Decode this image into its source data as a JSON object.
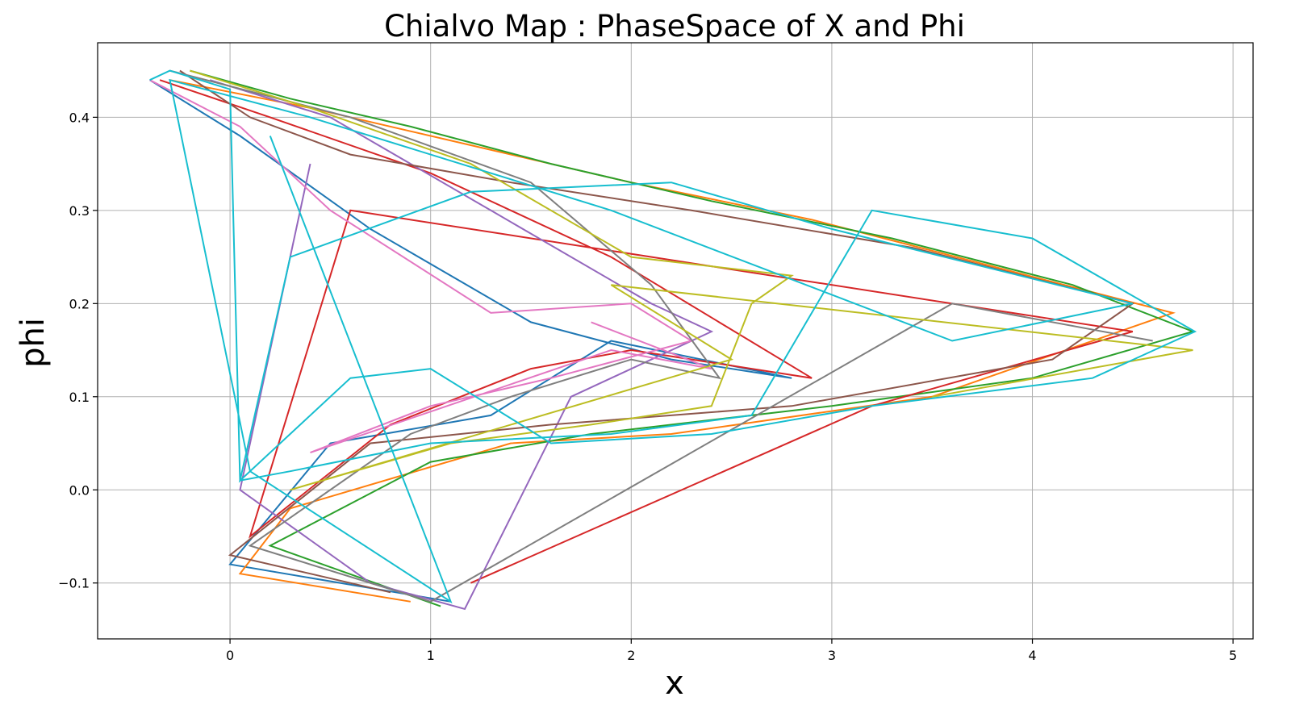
{
  "chart_data": {
    "type": "line",
    "title": "Chialvo Map : PhaseSpace of X and Phi",
    "xlabel": "x",
    "ylabel": "phi",
    "xlim": [
      -0.66,
      5.1
    ],
    "ylim": [
      -0.16,
      0.48
    ],
    "xticks": [
      0,
      1,
      2,
      3,
      4,
      5
    ],
    "yticks": [
      -0.1,
      0.0,
      0.1,
      0.2,
      0.3,
      0.4
    ],
    "xtick_labels": [
      "0",
      "1",
      "2",
      "3",
      "4",
      "5"
    ],
    "ytick_labels": [
      "−0.1",
      "0.0",
      "0.1",
      "0.2",
      "0.3",
      "0.4"
    ],
    "grid": true,
    "legend": "none",
    "colors": [
      "#1f77b4",
      "#ff7f0e",
      "#2ca02c",
      "#d62728",
      "#9467bd",
      "#8c564b",
      "#e377c2",
      "#7f7f7f",
      "#bcbd22",
      "#17becf"
    ],
    "series_note": "Many overlapping trajectories of the Chialvo map; each series is one orbit in the (x, phi) phase plane.",
    "series": [
      {
        "color": "#1f77b4",
        "x": [
          -0.4,
          0.05,
          0.7,
          1.5,
          2.2,
          2.8,
          1.9,
          1.3,
          0.5,
          0.0,
          1.1
        ],
        "y": [
          0.44,
          0.38,
          0.28,
          0.18,
          0.14,
          0.12,
          0.16,
          0.08,
          0.05,
          -0.08,
          -0.12
        ]
      },
      {
        "color": "#ff7f0e",
        "x": [
          -0.3,
          0.4,
          1.2,
          2.0,
          2.9,
          3.8,
          4.7,
          3.5,
          2.2,
          1.4,
          0.3,
          0.05,
          0.9
        ],
        "y": [
          0.44,
          0.41,
          0.37,
          0.33,
          0.29,
          0.24,
          0.19,
          0.1,
          0.06,
          0.05,
          -0.02,
          -0.09,
          -0.12
        ]
      },
      {
        "color": "#2ca02c",
        "x": [
          -0.2,
          0.3,
          0.9,
          1.6,
          2.4,
          3.3,
          4.2,
          4.8,
          4.0,
          3.0,
          1.8,
          1.0,
          0.2,
          1.05
        ],
        "y": [
          0.45,
          0.42,
          0.39,
          0.35,
          0.31,
          0.27,
          0.22,
          0.17,
          0.12,
          0.09,
          0.06,
          0.03,
          -0.06,
          -0.125
        ]
      },
      {
        "color": "#d62728",
        "x": [
          -0.35,
          0.2,
          1.0,
          1.9,
          2.9,
          2.0,
          1.5,
          0.8,
          0.1,
          0.6,
          4.5,
          3.2,
          1.2
        ],
        "y": [
          0.44,
          0.4,
          0.34,
          0.25,
          0.12,
          0.15,
          0.13,
          0.07,
          -0.05,
          0.3,
          0.17,
          0.09,
          -0.1
        ]
      },
      {
        "color": "#9467bd",
        "x": [
          -0.1,
          0.5,
          1.3,
          2.1,
          2.4,
          1.7,
          1.17,
          0.7,
          0.05,
          0.4
        ],
        "y": [
          0.44,
          0.4,
          0.3,
          0.2,
          0.17,
          0.1,
          -0.128,
          -0.1,
          0.0,
          0.35
        ]
      },
      {
        "color": "#8c564b",
        "x": [
          -0.25,
          0.1,
          0.6,
          1.4,
          2.3,
          3.4,
          4.5,
          4.1,
          2.8,
          1.6,
          0.7,
          0.0,
          0.8
        ],
        "y": [
          0.45,
          0.4,
          0.36,
          0.33,
          0.3,
          0.26,
          0.2,
          0.14,
          0.09,
          0.07,
          0.05,
          -0.07,
          -0.11
        ]
      },
      {
        "color": "#e377c2",
        "x": [
          -0.4,
          0.05,
          0.5,
          1.3,
          2.0,
          2.3,
          1.6,
          1.0,
          0.4,
          1.9,
          2.4,
          1.8
        ],
        "y": [
          0.44,
          0.39,
          0.3,
          0.19,
          0.2,
          0.16,
          0.12,
          0.09,
          0.04,
          0.15,
          0.13,
          0.18
        ]
      },
      {
        "color": "#7f7f7f",
        "x": [
          -0.3,
          0.6,
          1.5,
          2.1,
          2.44,
          2.0,
          1.4,
          0.9,
          0.1,
          1.0,
          3.6,
          4.6
        ],
        "y": [
          0.45,
          0.4,
          0.33,
          0.22,
          0.12,
          0.14,
          0.1,
          0.06,
          -0.06,
          -0.12,
          0.2,
          0.16
        ]
      },
      {
        "color": "#bcbd22",
        "x": [
          -0.2,
          0.4,
          1.2,
          2.0,
          2.8,
          2.6,
          2.4,
          1.8,
          1.1,
          0.3,
          2.5,
          1.9,
          4.8,
          3.5
        ],
        "y": [
          0.45,
          0.41,
          0.35,
          0.25,
          0.23,
          0.2,
          0.09,
          0.07,
          0.05,
          0.0,
          0.14,
          0.22,
          0.15,
          0.1
        ]
      },
      {
        "color": "#17becf",
        "x": [
          -0.4,
          -0.3,
          0.0,
          0.05,
          0.3,
          1.0,
          1.9,
          2.6,
          3.2,
          4.0,
          4.81,
          4.3,
          3.2,
          2.4,
          1.6,
          1.0,
          0.6,
          0.05,
          0.3,
          1.2,
          2.2,
          3.0,
          4.5,
          3.6,
          1.9,
          0.4,
          -0.3,
          0.1,
          1.1,
          0.2
        ],
        "y": [
          0.44,
          0.45,
          0.43,
          0.01,
          0.02,
          0.05,
          0.06,
          0.08,
          0.3,
          0.27,
          0.17,
          0.12,
          0.09,
          0.06,
          0.05,
          0.13,
          0.12,
          0.01,
          0.25,
          0.32,
          0.33,
          0.28,
          0.2,
          0.16,
          0.3,
          0.4,
          0.44,
          0.02,
          -0.12,
          0.38
        ]
      }
    ]
  }
}
